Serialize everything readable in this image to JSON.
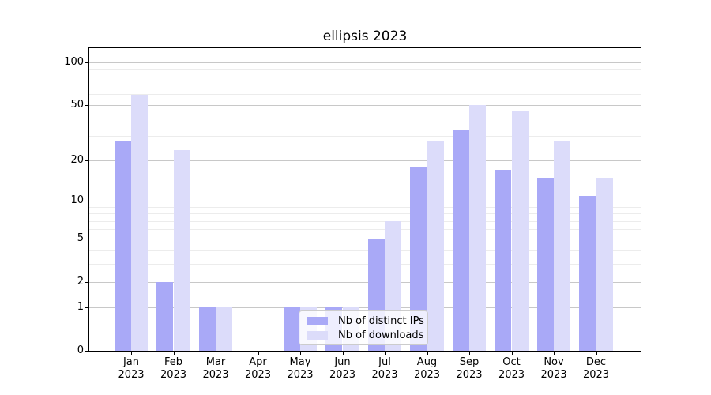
{
  "chart_data": {
    "type": "bar",
    "title": "ellipsis 2023",
    "categories": [
      "Jan",
      "Feb",
      "Mar",
      "Apr",
      "May",
      "Jun",
      "Jul",
      "Aug",
      "Sep",
      "Oct",
      "Nov",
      "Dec"
    ],
    "category_year": "2023",
    "series": [
      {
        "name": "Nb of distinct IPs",
        "color": "#a9a9f7",
        "values": [
          28,
          2,
          1,
          0,
          1,
          1,
          5,
          18,
          33,
          17,
          15,
          11
        ]
      },
      {
        "name": "Nb of downloads",
        "color": "#dcdcfa",
        "values": [
          59,
          24,
          1,
          0,
          1,
          1,
          7,
          28,
          50,
          45,
          28,
          15
        ]
      }
    ],
    "yscale": "log1p",
    "ylim": [
      0,
      126
    ],
    "yticks": [
      0,
      1,
      2,
      5,
      10,
      20,
      50,
      100
    ],
    "yticks_minor": [
      3,
      4,
      6,
      7,
      8,
      9,
      30,
      40,
      60,
      70,
      80,
      90
    ],
    "grid": "on",
    "legend_position": "lower center",
    "colors": {
      "grid_major": "#c8c8c8",
      "grid_minor": "#ececec",
      "axis": "#000000",
      "legend_border": "#cccccc",
      "legend_bg": "rgba(255,255,255,0.8)",
      "text": "#000000"
    }
  }
}
